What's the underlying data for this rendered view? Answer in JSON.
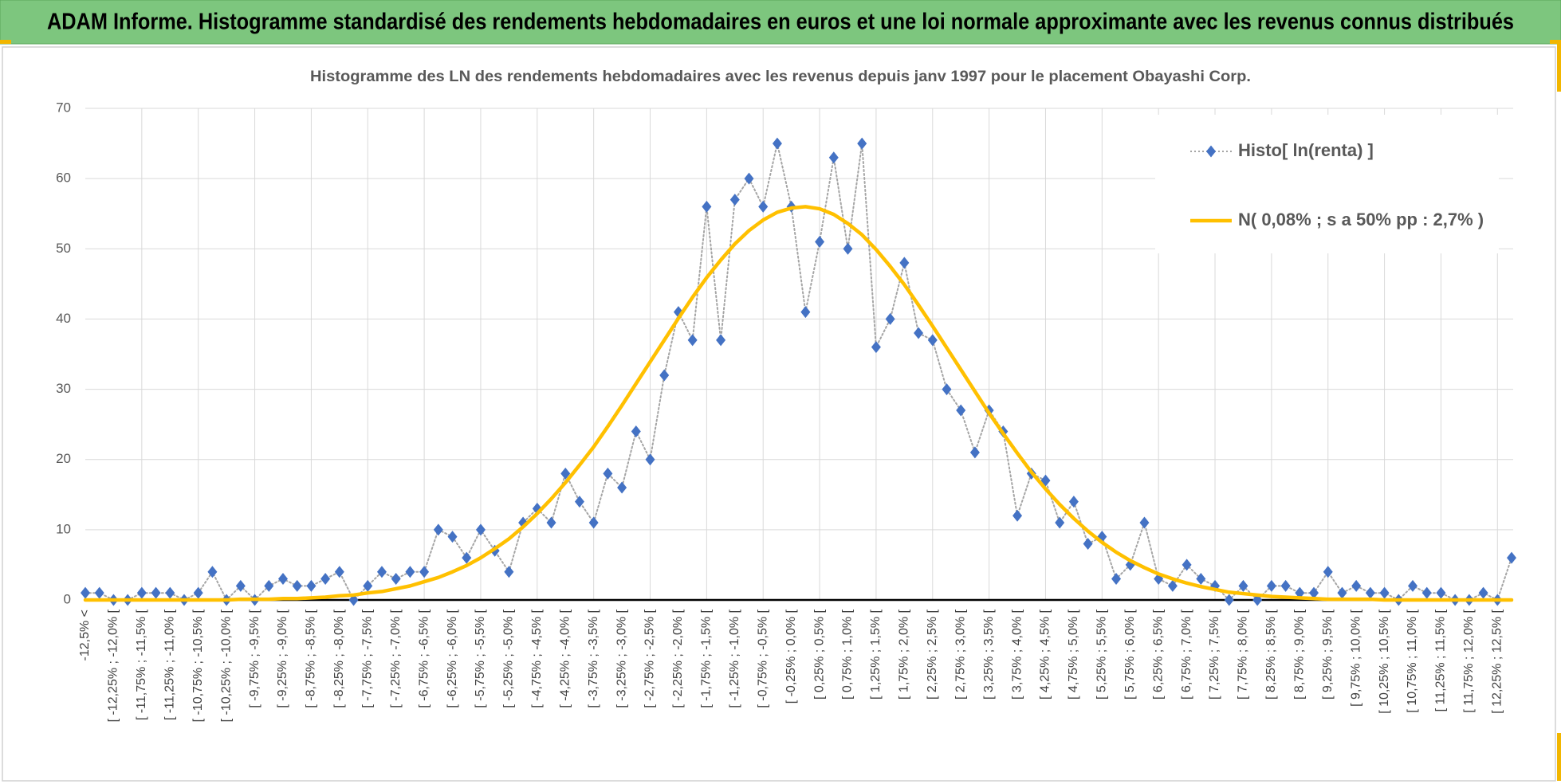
{
  "header": {
    "title": "ADAM Informe. Histogramme standardisé des rendements hebdomadaires en euros et une loi normale approximante avec les revenus connus distribués"
  },
  "chart_data": {
    "type": "line",
    "title": "Histogramme des LN des rendements hebdomadaires avec les revenus depuis janv 1997 pour le placement Obayashi Corp.",
    "categories": [
      "-12,5% <",
      null,
      "[ -12,25% ; -12,0% [",
      null,
      "[ -11,75% ; -11,5% [",
      null,
      "[ -11,25% ; -11,0% [",
      null,
      "[ -10,75% ; -10,5% [",
      null,
      "[ -10,25% ; -10,0% [",
      null,
      "[ -9,75% ; -9,5% [",
      null,
      "[ -9,25% ; -9,0% [",
      null,
      "[ -8,75% ; -8,5% [",
      null,
      "[ -8,25% ; -8,0% [",
      null,
      "[ -7,75% ; -7,5% [",
      null,
      "[ -7,25% ; -7,0% [",
      null,
      "[ -6,75% ; -6,5% [",
      null,
      "[ -6,25% ; -6,0% [",
      null,
      "[ -5,75% ; -5,5% [",
      null,
      "[ -5,25% ; -5,0% [",
      null,
      "[ -4,75% ; -4,5% [",
      null,
      "[ -4,25% ; -4,0% [",
      null,
      "[ -3,75% ; -3,5% [",
      null,
      "[ -3,25% ; -3,0% [",
      null,
      "[ -2,75% ; -2,5% [",
      null,
      "[ -2,25% ; -2,0% [",
      null,
      "[ -1,75% ; -1,5% [",
      null,
      "[ -1,25% ; -1,0% [",
      null,
      "[ -0,75% ; -0,5% [",
      null,
      "[ -0,25% ; 0,0% [",
      null,
      "[ 0,25% ; 0,5% [",
      null,
      "[ 0,75% ; 1,0% [",
      null,
      "[ 1,25% ; 1,5% [",
      null,
      "[ 1,75% ; 2,0% [",
      null,
      "[ 2,25% ; 2,5% [",
      null,
      "[ 2,75% ; 3,0% [",
      null,
      "[ 3,25% ; 3,5% [",
      null,
      "[ 3,75% ; 4,0% [",
      null,
      "[ 4,25% ; 4,5% [",
      null,
      "[ 4,75% ; 5,0% [",
      null,
      "[ 5,25% ; 5,5% [",
      null,
      "[ 5,75% ; 6,0% [",
      null,
      "[ 6,25% ; 6,5% [",
      null,
      "[ 6,75% ; 7,0% [",
      null,
      "[ 7,25% ; 7,5% [",
      null,
      "[ 7,75% ; 8,0% [",
      null,
      "[ 8,25% ; 8,5% [",
      null,
      "[ 8,75% ; 9,0% [",
      null,
      "[ 9,25% ; 9,5% [",
      null,
      "[ 9,75% ; 10,0% [",
      null,
      "[ 10,25% ; 10,5% [",
      null,
      "[ 10,75% ; 11,0% [",
      null,
      "[ 11,25% ; 11,5% [",
      null,
      "[ 11,75% ; 12,0% [",
      null,
      "[ 12,25% ; 12,5% [",
      null
    ],
    "series": [
      {
        "name": "Histo[ ln(renta) ]",
        "color": "#4472c4",
        "line_color": "#a5a5a5",
        "line": "dotted",
        "marker": "diamond",
        "values": [
          1,
          1,
          0,
          0,
          1,
          1,
          1,
          0,
          1,
          4,
          0,
          2,
          0,
          2,
          3,
          2,
          2,
          3,
          4,
          0,
          2,
          4,
          3,
          4,
          4,
          10,
          9,
          6,
          10,
          7,
          4,
          11,
          13,
          11,
          18,
          14,
          11,
          18,
          16,
          24,
          20,
          32,
          41,
          37,
          56,
          37,
          57,
          60,
          56,
          65,
          56,
          41,
          51,
          63,
          50,
          65,
          36,
          40,
          48,
          38,
          37,
          30,
          27,
          21,
          27,
          24,
          12,
          18,
          17,
          11,
          14,
          8,
          9,
          3,
          5,
          11,
          3,
          2,
          5,
          3,
          2,
          0,
          2,
          0,
          2,
          2,
          1,
          1,
          4,
          1,
          2,
          1,
          1,
          0,
          2,
          1,
          1,
          0,
          0,
          1,
          0,
          6
        ]
      },
      {
        "name": "N( 0,08% ; s a 50% pp : 2,7% )",
        "color": "#ffc000",
        "line": "solid",
        "marker": "none",
        "values": [
          0,
          0,
          0,
          0,
          0,
          0,
          0,
          0,
          0,
          0,
          0,
          0.1,
          0.1,
          0.1,
          0.2,
          0.2,
          0.3,
          0.4,
          0.6,
          0.7,
          1.0,
          1.2,
          1.6,
          2.0,
          2.6,
          3.2,
          4.0,
          4.9,
          6.0,
          7.3,
          8.7,
          10.4,
          12.3,
          14.4,
          16.7,
          19.2,
          21.8,
          24.7,
          27.7,
          30.8,
          33.9,
          37.0,
          40.1,
          43.1,
          45.9,
          48.4,
          50.7,
          52.6,
          54.1,
          55.2,
          55.8,
          56.0,
          55.7,
          54.9,
          53.6,
          52.0,
          49.9,
          47.5,
          44.9,
          42.0,
          39.0,
          35.9,
          32.8,
          29.7,
          26.6,
          23.7,
          20.9,
          18.2,
          15.8,
          13.6,
          11.6,
          9.8,
          8.2,
          6.8,
          5.6,
          4.6,
          3.7,
          3.0,
          2.4,
          1.9,
          1.5,
          1.1,
          0.9,
          0.7,
          0.5,
          0.4,
          0.3,
          0.2,
          0.1,
          0.1,
          0.1,
          0.1,
          0,
          0,
          0,
          0,
          0,
          0,
          0,
          0,
          0,
          0
        ]
      }
    ],
    "ylim": [
      0,
      70
    ],
    "yticks": [
      0,
      10,
      20,
      30,
      40,
      50,
      60,
      70
    ],
    "grid": true,
    "legend": "top-right"
  }
}
